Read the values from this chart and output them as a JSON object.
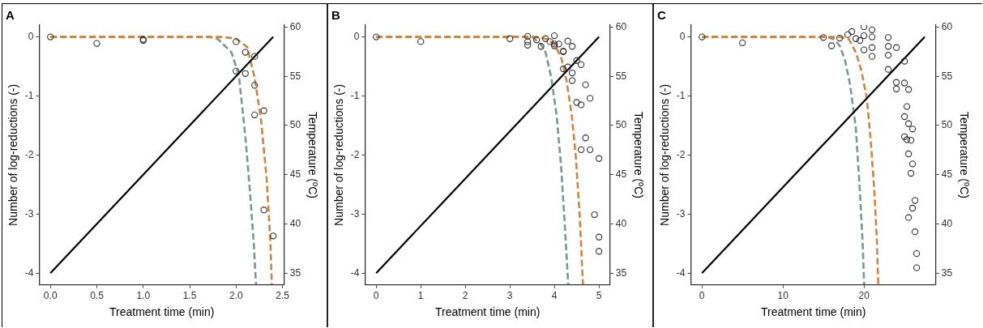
{
  "chart_data": [
    {
      "type": "scatter",
      "title": "A",
      "xlabel": "Treatment time (min)",
      "ylabel": "Number of log-reductions (-)",
      "y2label": "Temperature (ºC)",
      "xlim": [
        -0.12,
        2.52
      ],
      "xticks": [
        {
          "value": 0,
          "label": "0.0"
        },
        {
          "value": 0.5,
          "label": "0.5"
        },
        {
          "value": 1,
          "label": "1.0"
        },
        {
          "value": 1.5,
          "label": "1.5"
        },
        {
          "value": 2,
          "label": "2.0"
        },
        {
          "value": 2.5,
          "label": "2.5"
        }
      ],
      "ylim": [
        -4.2,
        0.2
      ],
      "yticks": [
        0,
        -1,
        -2,
        -3,
        -4
      ],
      "y2lim": [
        33.8,
        60.2
      ],
      "y2ticks": [
        35,
        40,
        45,
        50,
        55,
        60
      ],
      "legend": false,
      "series": [
        {
          "marker": "circle",
          "color": "#333333",
          "x": [
            0,
            0.5,
            1,
            1,
            2,
            2.1,
            2.2,
            2,
            2.1,
            2.2,
            2.3,
            2.2,
            2.3,
            2.4
          ],
          "values": [
            0,
            -0.11,
            -0.04,
            -0.06,
            -0.08,
            -0.26,
            -0.33,
            -0.58,
            -0.62,
            -0.82,
            -1.25,
            -1.32,
            -2.93,
            -3.37
          ]
        },
        {
          "type": "line",
          "color": "#7f968f",
          "line_style": "dashed",
          "x": [
            0,
            1.7,
            1.8,
            1.95,
            2.03,
            2.1,
            2.15,
            2.19,
            2.215
          ],
          "values": [
            0,
            0,
            -0.03,
            -0.26,
            -0.65,
            -1.68,
            -2.62,
            -3.48,
            -4.19
          ]
        },
        {
          "type": "line",
          "color": "#cd853f",
          "line_style": "dashed",
          "x": [
            0,
            1.85,
            2.0,
            2.12,
            2.2,
            2.27,
            2.33,
            2.37,
            2.385
          ],
          "values": [
            0,
            0,
            -0.03,
            -0.17,
            -0.69,
            -1.42,
            -2.41,
            -3.48,
            -4.19
          ]
        },
        {
          "type": "line",
          "color": "#000000",
          "line_style": "solid",
          "axis": "y2",
          "x": [
            0,
            2.4
          ],
          "values": [
            35,
            59
          ]
        }
      ]
    },
    {
      "type": "scatter",
      "title": "B",
      "xlabel": "Treatment time (min)",
      "ylabel": "Number of log-reductions (-)",
      "y2label": "Temperature (ºC)",
      "xlim": [
        -0.25,
        5.25
      ],
      "xticks": [
        0,
        1,
        2,
        3,
        4,
        5
      ],
      "ylim": [
        -4.2,
        0.2
      ],
      "yticks": [
        0,
        -1,
        -2,
        -3,
        -4
      ],
      "y2lim": [
        33.8,
        60.2
      ],
      "y2ticks": [
        35,
        40,
        45,
        50,
        55,
        60
      ],
      "legend": false,
      "series": [
        {
          "marker": "circle",
          "color": "#333333",
          "x": [
            0,
            1,
            3,
            3.4,
            3.4,
            3.4,
            3.6,
            3.7,
            3.8,
            3.9,
            4.0,
            4.0,
            4.0,
            4.1,
            4.2,
            4.2,
            4.3,
            4.4,
            4.5,
            4.6,
            4.2,
            4.3,
            4.4,
            4.4,
            4.7,
            4.8,
            4.5,
            4.6,
            4.7,
            4.6,
            4.8,
            5.0,
            4.9,
            5.0,
            5.0
          ],
          "values": [
            0,
            -0.08,
            -0.03,
            0.01,
            -0.08,
            -0.14,
            -0.05,
            -0.16,
            -0.03,
            -0.08,
            0.02,
            -0.12,
            -0.15,
            -0.12,
            -0.24,
            -0.25,
            -0.07,
            -0.16,
            -0.4,
            -0.47,
            -0.54,
            -0.51,
            -0.61,
            -0.74,
            -0.81,
            -1.04,
            -1.11,
            -1.15,
            -1.71,
            -1.91,
            -1.91,
            -2.06,
            -3.01,
            -3.39,
            -3.63
          ]
        },
        {
          "type": "line",
          "color": "#7f968f",
          "line_style": "dashed",
          "x": [
            0,
            3.5,
            3.7,
            3.8,
            3.93,
            4.05,
            4.15,
            4.24,
            4.31
          ],
          "values": [
            0,
            0,
            -0.13,
            -0.26,
            -0.69,
            -1.33,
            -2.19,
            -3.27,
            -4.19
          ]
        },
        {
          "type": "line",
          "color": "#cd853f",
          "line_style": "dashed",
          "x": [
            0,
            3.6,
            3.85,
            4.0,
            4.15,
            4.27,
            4.39,
            4.48,
            4.57,
            4.64
          ],
          "values": [
            0,
            0,
            -0.04,
            -0.13,
            -0.34,
            -0.73,
            -1.33,
            -2.02,
            -3.05,
            -4.19
          ]
        },
        {
          "type": "line",
          "color": "#000000",
          "line_style": "solid",
          "axis": "y2",
          "x": [
            0,
            5
          ],
          "values": [
            35,
            59
          ]
        }
      ]
    },
    {
      "type": "scatter",
      "title": "C",
      "xlabel": "Treatment time (min)",
      "ylabel": "Number of log-reductions (-)",
      "y2label": "Temperature (ºC)",
      "xlim": [
        -1.375,
        28.875
      ],
      "xticks": [
        0,
        10,
        20
      ],
      "ylim": [
        -4.2,
        0.2
      ],
      "yticks": [
        0,
        -1,
        -2,
        -3,
        -4
      ],
      "y2lim": [
        33.8,
        60.2
      ],
      "y2ticks": [
        35,
        40,
        45,
        50,
        55,
        60
      ],
      "legend": false,
      "series": [
        {
          "marker": "circle",
          "color": "#333333",
          "x": [
            0,
            5,
            15,
            16,
            17,
            18,
            18.5,
            19,
            19.5,
            20,
            20,
            20,
            21,
            21,
            21,
            21,
            23,
            23,
            23,
            23,
            24,
            25,
            24,
            24,
            25,
            25.5,
            25.3,
            25,
            25.5,
            26,
            25,
            25.3,
            25.8,
            25.5,
            26,
            25.8,
            26.3,
            26,
            25.5,
            26.3,
            26.5,
            26.5
          ],
          "values": [
            0,
            -0.1,
            -0.01,
            -0.15,
            -0.02,
            0.04,
            0.09,
            -0.03,
            -0.06,
            0.17,
            0.02,
            -0.22,
            0.12,
            0,
            -0.18,
            -0.33,
            -0.01,
            -0.16,
            -0.31,
            -0.55,
            -0.18,
            -0.41,
            -0.77,
            -0.88,
            -0.78,
            -0.89,
            -1.18,
            -1.35,
            -1.47,
            -1.56,
            -1.69,
            -1.74,
            -1.75,
            -1.98,
            -2.15,
            -2.31,
            -2.77,
            -2.9,
            -3.06,
            -3.3,
            -3.67,
            -3.91
          ]
        },
        {
          "type": "line",
          "color": "#7f968f",
          "line_style": "dashed",
          "x": [
            0,
            15.5,
            16.3,
            17,
            17.65,
            18.3,
            19,
            19.5,
            19.83,
            20.02
          ],
          "values": [
            0,
            0,
            -0.04,
            -0.15,
            -0.39,
            -0.82,
            -1.55,
            -2.62,
            -3.48,
            -4.19
          ]
        },
        {
          "type": "line",
          "color": "#cd853f",
          "line_style": "dashed",
          "x": [
            0,
            17,
            18.15,
            19,
            19.66,
            20.34,
            20.84,
            21.28,
            21.6,
            21.76
          ],
          "values": [
            0,
            0,
            -0.04,
            -0.26,
            -0.56,
            -1.03,
            -1.76,
            -2.62,
            -3.48,
            -4.19
          ]
        },
        {
          "type": "line",
          "color": "#000000",
          "line_style": "solid",
          "axis": "y2",
          "x": [
            0,
            27.5
          ],
          "values": [
            35,
            59
          ]
        }
      ]
    }
  ]
}
